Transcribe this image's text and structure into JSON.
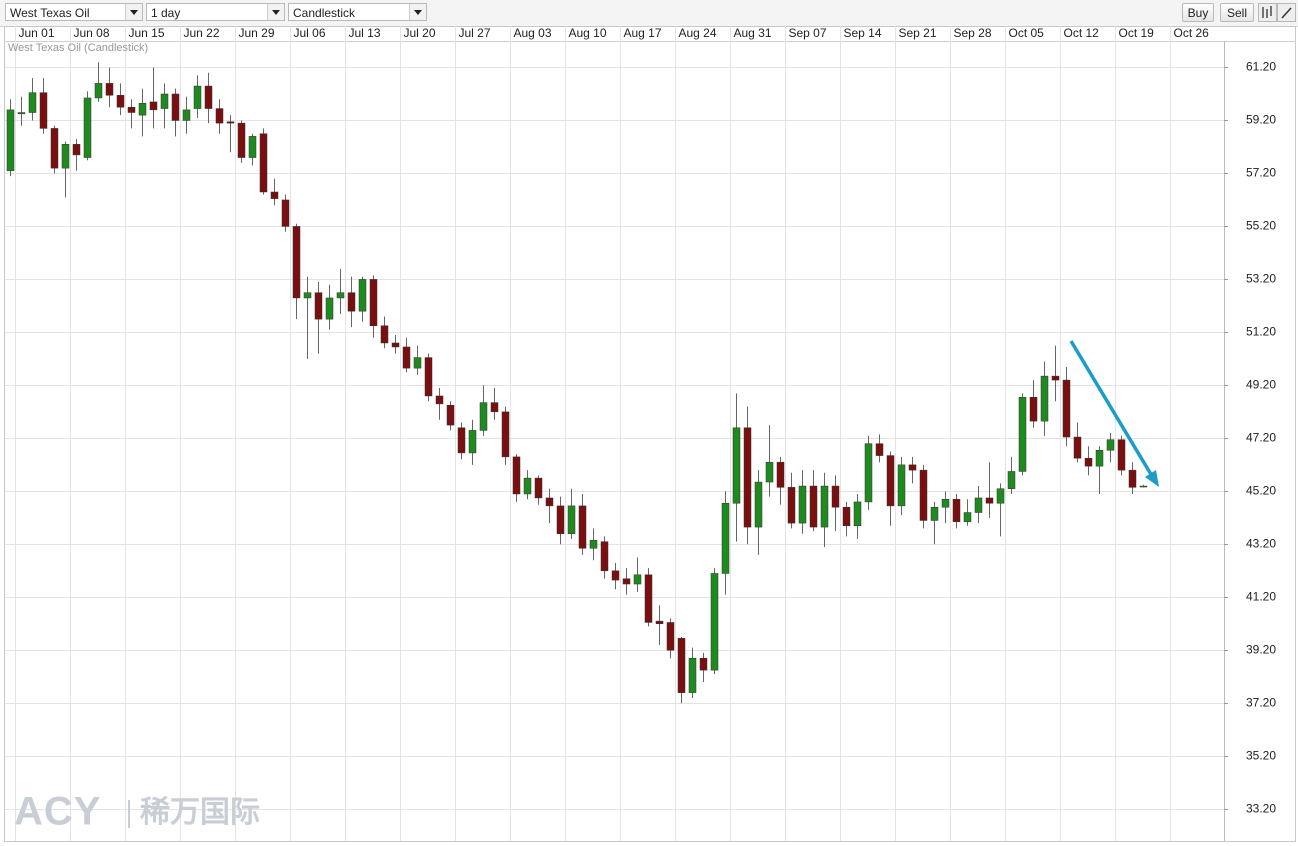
{
  "toolbar": {
    "instrument": "West Texas Oil",
    "interval": "1 day",
    "chart_style": "Candlestick",
    "buttons": [
      "Buy",
      "Sell"
    ]
  },
  "chart_data": {
    "type": "candlestick",
    "title": "West Texas Oil (Candlestick)",
    "categories": [
      null,
      "Jun 01",
      null,
      null,
      null,
      null,
      "Jun 08",
      null,
      null,
      null,
      null,
      "Jun 15",
      null,
      null,
      null,
      null,
      "Jun 22",
      null,
      null,
      null,
      null,
      "Jun 29",
      null,
      null,
      null,
      null,
      "Jul 06",
      null,
      null,
      null,
      null,
      "Jul 13",
      null,
      null,
      null,
      null,
      "Jul 20",
      null,
      null,
      null,
      null,
      "Jul 27",
      null,
      null,
      null,
      null,
      "Aug 03",
      null,
      null,
      null,
      null,
      "Aug 10",
      null,
      null,
      null,
      null,
      "Aug 17",
      null,
      null,
      null,
      null,
      "Aug 24",
      null,
      null,
      null,
      null,
      "Aug 31",
      null,
      null,
      null,
      null,
      "Sep 07",
      null,
      null,
      null,
      null,
      "Sep 14",
      null,
      null,
      null,
      null,
      "Sep 21",
      null,
      null,
      null,
      null,
      "Sep 28",
      null,
      null,
      null,
      null,
      "Oct 05",
      null,
      null,
      null,
      null,
      "Oct 12",
      null,
      null,
      null,
      null,
      "Oct 19",
      null,
      null,
      null,
      null,
      "Oct 26",
      null,
      null,
      null,
      null
    ],
    "open": [
      57.3,
      59.45,
      59.5,
      60.25,
      58.9,
      57.4,
      58.3,
      57.8,
      60.05,
      60.6,
      60.15,
      59.7,
      59.4,
      59.9,
      59.65,
      60.2,
      59.2,
      59.65,
      60.5,
      59.65,
      59.15,
      59.1,
      57.8,
      58.7,
      56.5,
      56.2,
      55.2,
      52.5,
      52.7,
      51.7,
      52.5,
      52.7,
      52.0,
      53.2,
      51.45,
      50.8,
      50.65,
      49.85,
      50.25,
      48.8,
      48.45,
      47.6,
      46.65,
      47.5,
      48.55,
      48.2,
      46.5,
      45.1,
      45.7,
      44.95,
      44.65,
      43.6,
      44.65,
      43.05,
      43.3,
      42.2,
      41.9,
      41.7,
      42.05,
      40.3,
      40.25,
      39.65,
      37.6,
      38.9,
      38.45,
      42.1,
      44.75,
      47.6,
      43.85,
      45.55,
      46.3,
      45.35,
      44.0,
      45.4,
      43.85,
      45.4,
      44.6,
      43.9,
      44.8,
      47.0,
      46.55,
      44.65,
      46.2,
      46.0,
      44.1,
      44.6,
      44.9,
      44.05,
      44.4,
      44.95,
      44.75,
      45.3,
      45.95,
      48.75,
      47.85,
      49.55,
      49.4,
      47.25,
      46.45,
      46.15,
      46.75,
      47.15,
      46.0,
      45.4,
      null,
      null,
      null,
      null,
      null,
      null,
      null
    ],
    "high": [
      60.0,
      60.1,
      60.8,
      60.8,
      59.0,
      58.4,
      58.5,
      60.3,
      61.4,
      61.2,
      60.6,
      60.0,
      60.4,
      61.2,
      60.6,
      60.4,
      60.1,
      60.9,
      61.0,
      60.0,
      59.4,
      59.2,
      58.7,
      58.9,
      57.0,
      56.4,
      55.3,
      53.3,
      53.1,
      53.0,
      53.6,
      53.3,
      53.3,
      53.35,
      51.8,
      51.1,
      51.0,
      50.7,
      50.4,
      49.1,
      48.6,
      47.8,
      47.9,
      49.2,
      49.1,
      48.4,
      46.6,
      46.0,
      45.8,
      45.3,
      45.0,
      45.3,
      45.1,
      43.8,
      43.5,
      42.5,
      42.3,
      42.7,
      42.3,
      40.9,
      40.4,
      39.7,
      39.3,
      39.1,
      42.3,
      45.2,
      48.9,
      48.4,
      46.0,
      47.7,
      46.5,
      45.9,
      46.0,
      46.0,
      45.9,
      45.8,
      44.8,
      45.1,
      47.3,
      47.35,
      46.7,
      46.5,
      46.5,
      46.2,
      44.8,
      45.2,
      45.1,
      44.9,
      45.4,
      46.3,
      45.5,
      46.5,
      48.9,
      49.4,
      50.1,
      50.7,
      49.9,
      47.8,
      46.9,
      46.9,
      47.4,
      47.3,
      46.3,
      45.45,
      null,
      null,
      null,
      null,
      null,
      null,
      null
    ],
    "low": [
      57.1,
      59.0,
      59.2,
      58.7,
      57.2,
      56.3,
      57.3,
      57.7,
      59.9,
      59.7,
      59.4,
      58.9,
      58.6,
      58.9,
      58.9,
      58.6,
      58.7,
      59.3,
      59.1,
      58.7,
      58.0,
      57.6,
      57.5,
      56.4,
      56.0,
      55.0,
      51.7,
      50.2,
      50.4,
      51.3,
      51.9,
      51.4,
      51.6,
      51.0,
      50.6,
      50.4,
      49.7,
      49.6,
      48.6,
      47.9,
      47.5,
      46.4,
      46.2,
      47.3,
      47.9,
      46.2,
      44.8,
      44.9,
      44.7,
      44.0,
      43.2,
      43.4,
      42.8,
      42.6,
      41.9,
      41.5,
      41.3,
      41.4,
      40.1,
      39.4,
      38.9,
      37.2,
      37.4,
      38.0,
      38.3,
      41.3,
      43.3,
      43.2,
      42.8,
      45.0,
      44.7,
      43.8,
      43.6,
      43.7,
      43.1,
      43.7,
      43.5,
      43.4,
      44.5,
      46.3,
      43.9,
      44.3,
      45.5,
      43.8,
      43.2,
      44.0,
      43.8,
      43.9,
      44.0,
      44.2,
      43.5,
      45.1,
      45.8,
      47.6,
      47.3,
      48.6,
      46.9,
      46.3,
      45.8,
      45.1,
      46.3,
      45.8,
      45.1,
      45.35,
      null,
      null,
      null,
      null,
      null,
      null,
      null
    ],
    "close": [
      59.6,
      59.5,
      60.25,
      58.9,
      57.4,
      58.3,
      57.9,
      60.05,
      60.6,
      60.15,
      59.7,
      59.5,
      59.85,
      59.6,
      60.2,
      59.2,
      59.6,
      60.5,
      59.65,
      59.1,
      59.1,
      57.8,
      58.6,
      56.5,
      56.25,
      55.2,
      52.5,
      52.7,
      51.7,
      52.5,
      52.7,
      52.0,
      53.2,
      51.45,
      50.8,
      50.65,
      49.85,
      50.25,
      48.8,
      48.5,
      47.7,
      46.65,
      47.5,
      48.55,
      48.2,
      46.5,
      45.1,
      45.7,
      44.95,
      44.65,
      43.6,
      44.65,
      43.05,
      43.35,
      42.2,
      41.85,
      41.7,
      42.05,
      40.25,
      40.2,
      39.2,
      37.6,
      38.9,
      38.45,
      42.1,
      44.75,
      47.6,
      43.85,
      45.55,
      46.3,
      45.35,
      44.0,
      45.4,
      43.85,
      45.4,
      44.6,
      43.9,
      44.8,
      47.0,
      46.55,
      44.65,
      46.2,
      46.0,
      44.1,
      44.6,
      44.9,
      44.05,
      44.4,
      44.95,
      44.75,
      45.3,
      45.95,
      48.75,
      47.85,
      49.55,
      49.4,
      47.25,
      46.45,
      46.15,
      46.75,
      47.15,
      46.0,
      45.35,
      45.4,
      null,
      null,
      null,
      null,
      null,
      null,
      null
    ],
    "up_color": "#1f8a1f",
    "down_color": "#7a0f0f",
    "ylim": [
      32.0,
      62.2
    ],
    "yticks": [
      {
        "value": 33.2,
        "label": "33.20"
      },
      {
        "value": 35.2,
        "label": "35.20"
      },
      {
        "value": 37.2,
        "label": "37.20"
      },
      {
        "value": 39.2,
        "label": "39.20"
      },
      {
        "value": 41.2,
        "label": "41.20"
      },
      {
        "value": 43.2,
        "label": "43.20"
      },
      {
        "value": 45.2,
        "label": "45.20"
      },
      {
        "value": 47.2,
        "label": "47.20"
      },
      {
        "value": 49.2,
        "label": "49.20"
      },
      {
        "value": 51.2,
        "label": "51.20"
      },
      {
        "value": 53.2,
        "label": "53.20"
      },
      {
        "value": 55.2,
        "label": "55.20"
      },
      {
        "value": 57.2,
        "label": "57.20"
      },
      {
        "value": 59.2,
        "label": "59.20"
      },
      {
        "value": 61.2,
        "label": "61.20"
      }
    ],
    "grid": true
  },
  "watermark": {
    "brand": "ACY",
    "text": "稀万国际"
  }
}
